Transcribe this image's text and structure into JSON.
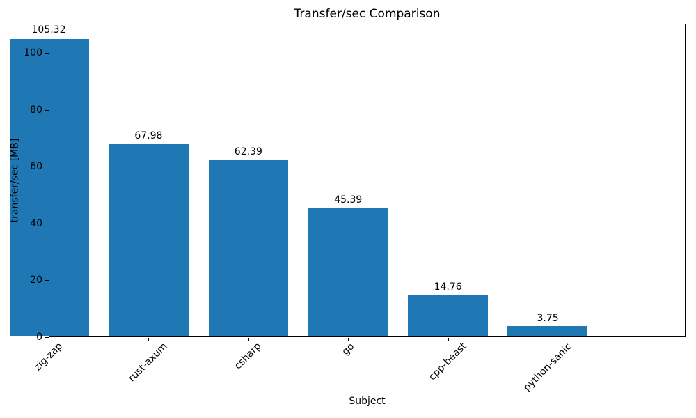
{
  "chart_data": {
    "type": "bar",
    "title": "Transfer/sec Comparison",
    "xlabel": "Subject",
    "ylabel": "transfer/sec [MB]",
    "categories": [
      "zig-zap",
      "rust-axum",
      "csharp",
      "go",
      "cpp-beast",
      "python-sanic"
    ],
    "values": [
      105.32,
      67.98,
      62.39,
      45.39,
      14.76,
      3.75
    ],
    "bar_value_labels": [
      "105.32",
      "67.98",
      "62.39",
      "45.39",
      "14.76",
      "3.75"
    ],
    "yticks": [
      0,
      20,
      40,
      60,
      80,
      100
    ],
    "ytick_labels": [
      "0",
      "20",
      "40",
      "60",
      "80",
      "100"
    ],
    "ylim": [
      0,
      110.4
    ],
    "xtick_rotation_deg": 45,
    "grid": false,
    "legend": null,
    "colors": {
      "bar": "#1f77b4",
      "text": "#000000",
      "spine": "#000000",
      "background": "#ffffff"
    }
  }
}
